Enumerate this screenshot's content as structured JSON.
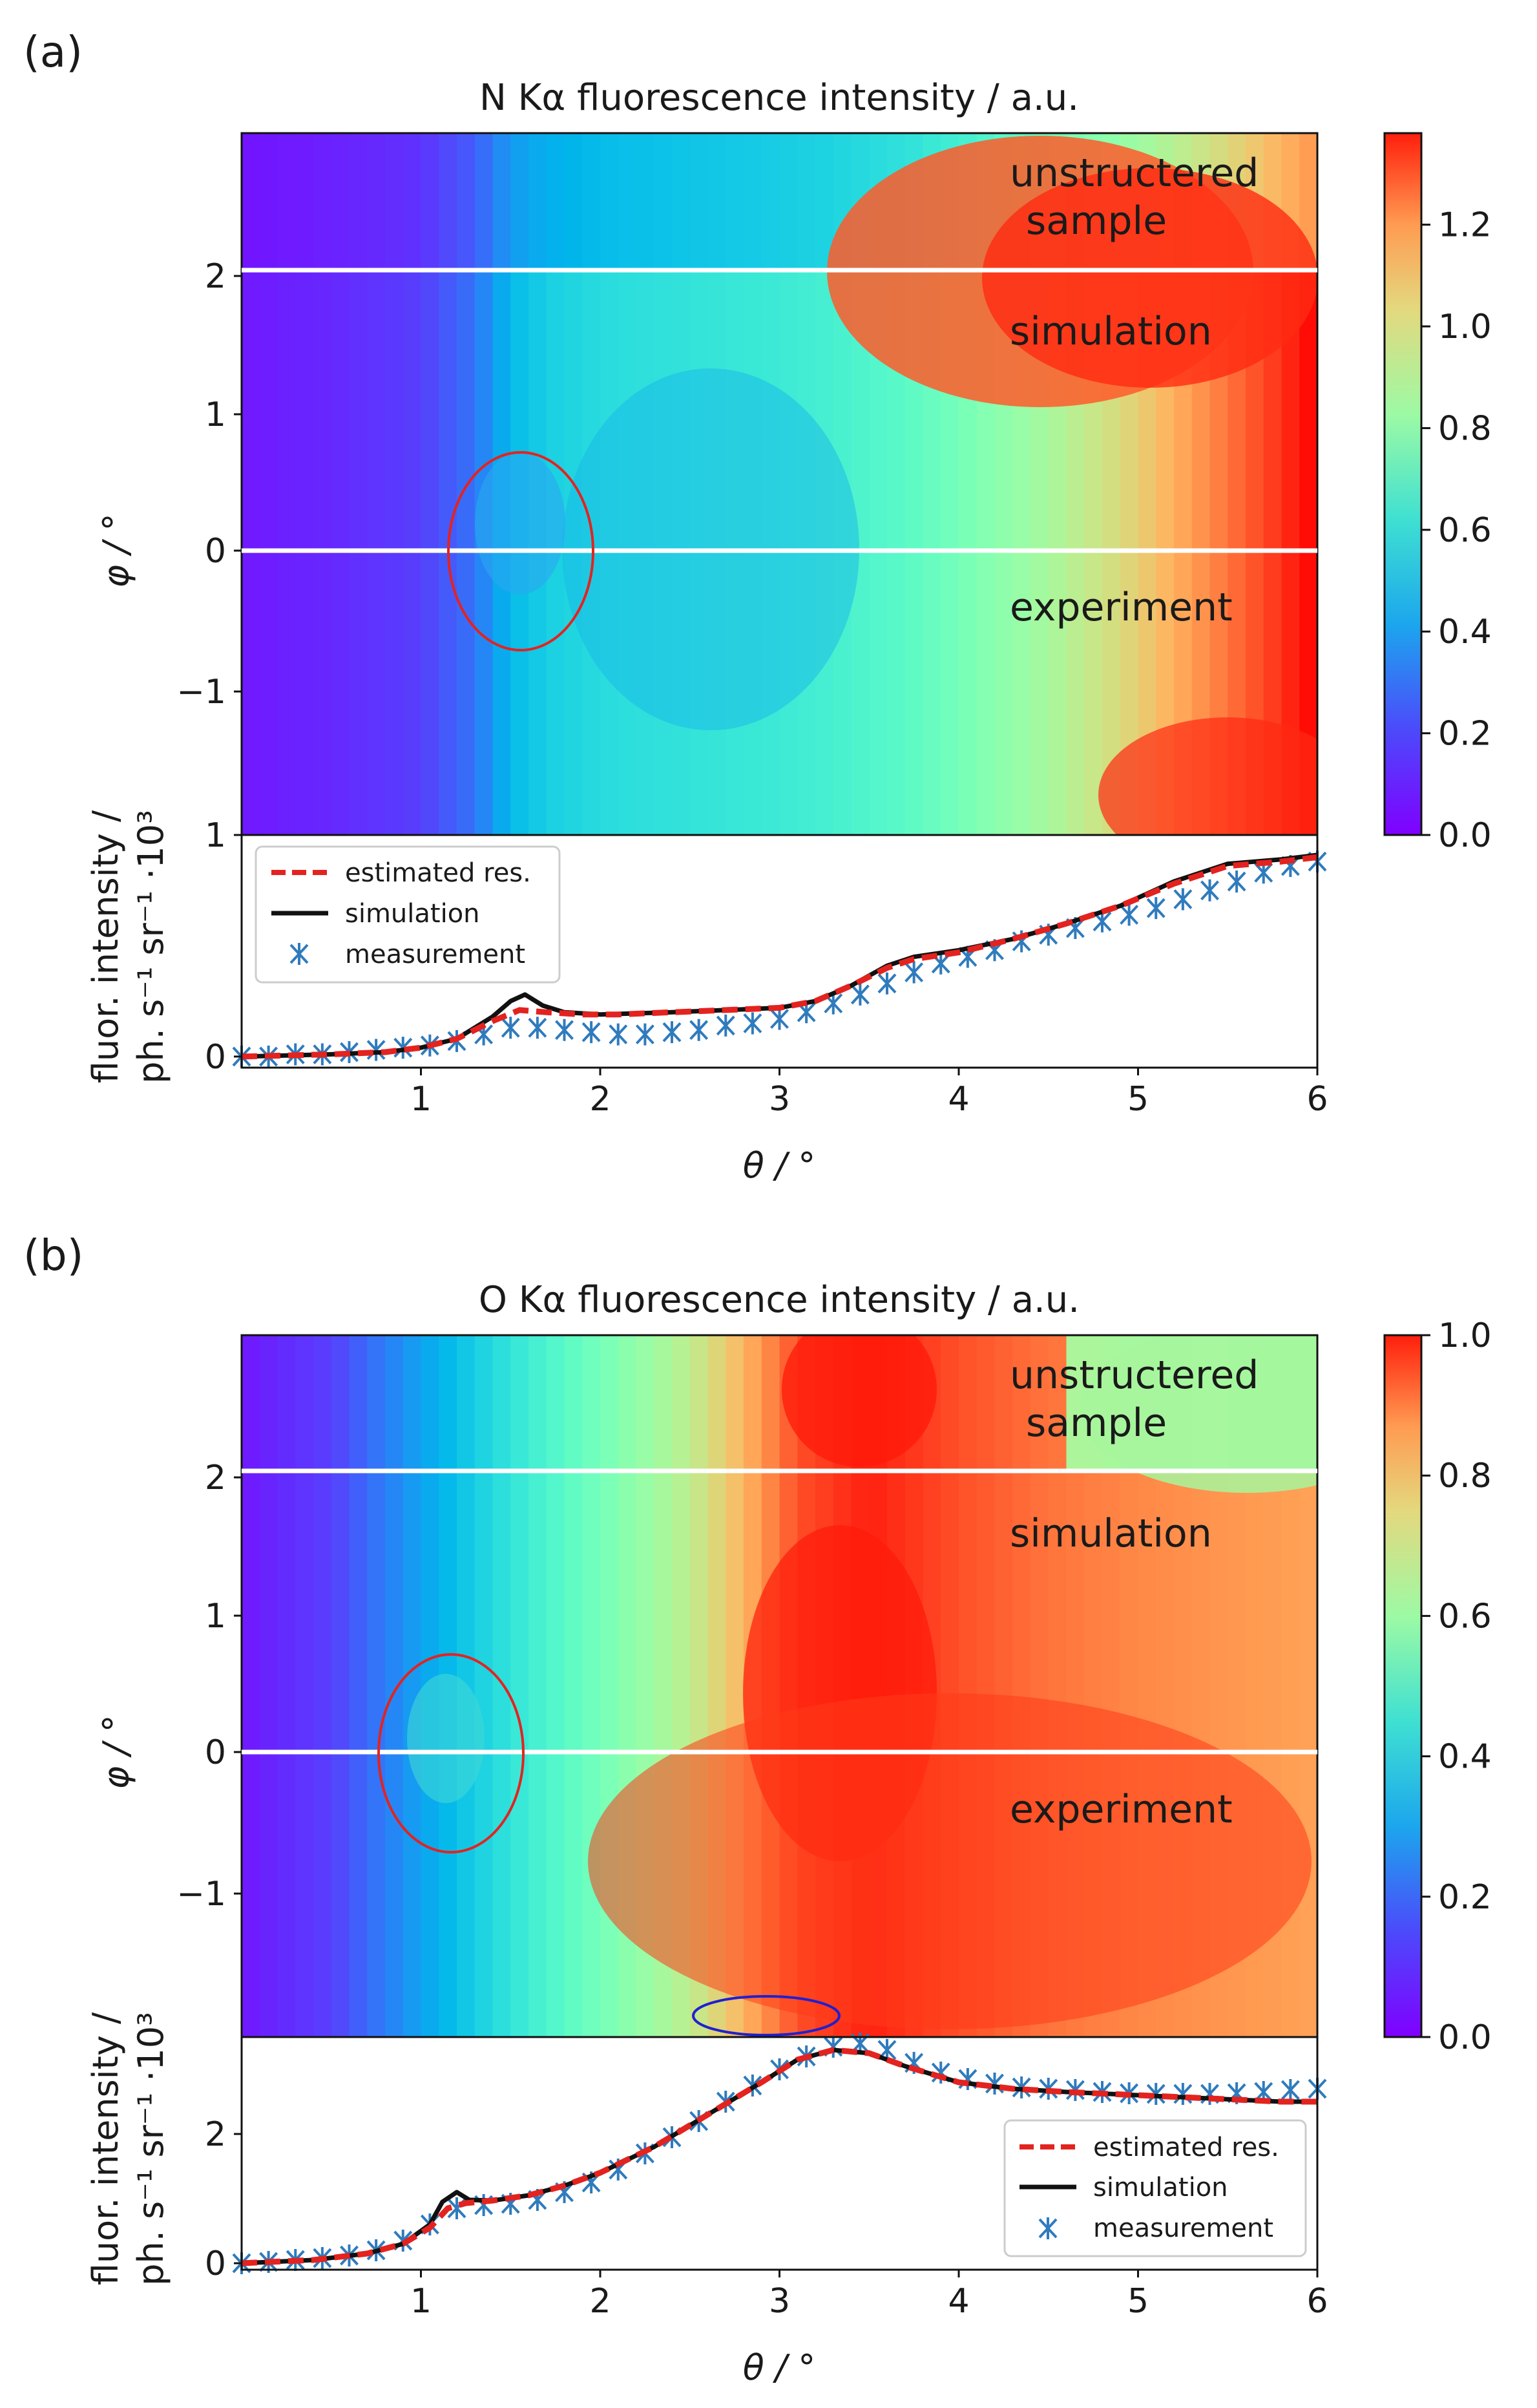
{
  "chart_data": [
    {
      "panel_label": "(a)",
      "type": "heatmap",
      "title": "N Kα fluorescence intensity / a.u.",
      "xlabel": "θ / °",
      "ylabel": "φ / °",
      "xlim": [
        0,
        6
      ],
      "ylim": [
        -2,
        3
      ],
      "y_ticks": [
        "−1",
        "0",
        "1",
        "2"
      ],
      "colorbar": {
        "min": 0,
        "max": 1.38,
        "ticks": [
          "0.0",
          "0.2",
          "0.4",
          "0.6",
          "0.8",
          "1.0",
          "1.2"
        ],
        "colormap": "rainbow"
      },
      "region_labels": [
        "unstructered",
        "sample",
        "simulation",
        "experiment"
      ],
      "divider_phi": [
        2.05,
        0
      ],
      "highlight_ellipse": {
        "theta": 1.55,
        "phi": 0,
        "dtheta": 0.4,
        "dphi": 0.7,
        "color": "#e3231f"
      },
      "intensity_profile": [
        [
          0,
          0.03
        ],
        [
          0.5,
          0.05
        ],
        [
          1,
          0.08
        ],
        [
          1.3,
          0.15
        ],
        [
          1.5,
          0.26
        ],
        [
          1.7,
          0.3
        ],
        [
          2,
          0.33
        ],
        [
          2.5,
          0.35
        ],
        [
          3,
          0.37
        ],
        [
          3.3,
          0.39
        ],
        [
          3.7,
          0.43
        ],
        [
          4,
          0.48
        ],
        [
          4.5,
          0.58
        ],
        [
          5,
          0.7
        ],
        [
          5.5,
          0.85
        ],
        [
          6,
          1.0
        ]
      ],
      "lineplot": {
        "xlabel": "θ / °",
        "ylabel_line1": "fluor. intensity /",
        "ylabel_line2": "ph. s⁻¹ sr⁻¹ ·10³",
        "xlim": [
          0,
          6
        ],
        "ylim": [
          -0.05,
          1.0
        ],
        "x_ticks": [
          "1",
          "2",
          "3",
          "4",
          "5",
          "6"
        ],
        "y_ticks": [
          "0",
          "1"
        ],
        "legend": {
          "position": "top-left",
          "entries": [
            "estimated res.",
            "simulation",
            "measurement"
          ]
        },
        "series": [
          {
            "name": "estimated res.",
            "style": "dashed",
            "color": "#e3231f",
            "x": [
              0,
              0.5,
              0.8,
              1,
              1.2,
              1.4,
              1.55,
              1.7,
              1.9,
              2.1,
              2.4,
              2.7,
              3,
              3.2,
              3.4,
              3.6,
              3.75,
              4,
              4.3,
              4.6,
              4.9,
              5.2,
              5.5,
              5.8,
              6
            ],
            "y": [
              0,
              0.01,
              0.02,
              0.04,
              0.08,
              0.16,
              0.21,
              0.2,
              0.19,
              0.19,
              0.2,
              0.21,
              0.22,
              0.25,
              0.32,
              0.4,
              0.44,
              0.47,
              0.53,
              0.6,
              0.68,
              0.78,
              0.86,
              0.88,
              0.9
            ]
          },
          {
            "name": "simulation",
            "style": "solid",
            "color": "#111111",
            "x": [
              0,
              0.5,
              0.8,
              1,
              1.2,
              1.4,
              1.5,
              1.58,
              1.68,
              1.8,
              2,
              2.4,
              2.7,
              3,
              3.2,
              3.4,
              3.6,
              3.75,
              4,
              4.3,
              4.6,
              4.9,
              5.2,
              5.5,
              5.8,
              6
            ],
            "y": [
              0,
              0.01,
              0.02,
              0.04,
              0.08,
              0.18,
              0.25,
              0.28,
              0.23,
              0.2,
              0.19,
              0.2,
              0.21,
              0.22,
              0.25,
              0.32,
              0.41,
              0.45,
              0.48,
              0.53,
              0.6,
              0.68,
              0.79,
              0.87,
              0.89,
              0.91
            ]
          },
          {
            "name": "measurement",
            "style": "markers",
            "color": "#2f7bbd",
            "x": [
              0,
              0.15,
              0.3,
              0.45,
              0.6,
              0.75,
              0.9,
              1.05,
              1.2,
              1.35,
              1.5,
              1.65,
              1.8,
              1.95,
              2.1,
              2.25,
              2.4,
              2.55,
              2.7,
              2.85,
              3,
              3.15,
              3.3,
              3.45,
              3.6,
              3.75,
              3.9,
              4.05,
              4.2,
              4.35,
              4.5,
              4.65,
              4.8,
              4.95,
              5.1,
              5.25,
              5.4,
              5.55,
              5.7,
              5.85,
              6
            ],
            "y": [
              0,
              0,
              0.01,
              0.01,
              0.02,
              0.03,
              0.04,
              0.05,
              0.07,
              0.1,
              0.13,
              0.13,
              0.12,
              0.11,
              0.1,
              0.1,
              0.11,
              0.12,
              0.14,
              0.15,
              0.17,
              0.2,
              0.24,
              0.28,
              0.33,
              0.38,
              0.42,
              0.45,
              0.48,
              0.52,
              0.55,
              0.58,
              0.61,
              0.64,
              0.67,
              0.71,
              0.75,
              0.79,
              0.83,
              0.86,
              0.88
            ]
          }
        ]
      }
    },
    {
      "panel_label": "(b)",
      "type": "heatmap",
      "title": "O Kα fluorescence intensity / a.u.",
      "xlabel": "θ / °",
      "ylabel": "φ / °",
      "xlim": [
        0,
        6
      ],
      "ylim": [
        -2,
        3
      ],
      "y_ticks": [
        "−1",
        "0",
        "1",
        "2"
      ],
      "colorbar": {
        "min": 0,
        "max": 1.0,
        "ticks": [
          "0.0",
          "0.2",
          "0.4",
          "0.6",
          "0.8",
          "1.0"
        ],
        "colormap": "rainbow"
      },
      "region_labels": [
        "unstructered",
        "sample",
        "simulation",
        "experiment"
      ],
      "divider_phi": [
        2.05,
        0
      ],
      "highlight_ellipse": {
        "theta": 1.15,
        "phi": 0,
        "dtheta": 0.4,
        "dphi": 0.7,
        "color": "#e3231f"
      },
      "highlight_ellipse_2": {
        "theta": 2.95,
        "phi": -1.85,
        "dtheta": 0.4,
        "dphi": 0.13,
        "color": "#2020d0"
      },
      "intensity_profile": [
        [
          0,
          0.03
        ],
        [
          0.5,
          0.08
        ],
        [
          1,
          0.22
        ],
        [
          1.5,
          0.35
        ],
        [
          2,
          0.48
        ],
        [
          2.5,
          0.62
        ],
        [
          2.8,
          0.75
        ],
        [
          3.1,
          0.9
        ],
        [
          3.5,
          0.96
        ],
        [
          4,
          0.9
        ],
        [
          4.5,
          0.85
        ],
        [
          5,
          0.82
        ],
        [
          5.5,
          0.8
        ],
        [
          6,
          0.78
        ]
      ],
      "lineplot": {
        "xlabel": "θ / °",
        "ylabel_line1": "fluor. intensity /",
        "ylabel_line2": "ph. s⁻¹ sr⁻¹ ·10³",
        "xlim": [
          0,
          6
        ],
        "ylim": [
          -0.1,
          3.5
        ],
        "x_ticks": [
          "1",
          "2",
          "3",
          "4",
          "5",
          "6"
        ],
        "y_ticks": [
          "0",
          "2"
        ],
        "legend": {
          "position": "bottom-right",
          "entries": [
            "estimated res.",
            "simulation",
            "measurement"
          ]
        },
        "series": [
          {
            "name": "estimated res.",
            "style": "dashed",
            "color": "#e3231f",
            "x": [
              0,
              0.4,
              0.7,
              0.9,
              1.05,
              1.15,
              1.25,
              1.4,
              1.6,
              1.8,
              2,
              2.3,
              2.6,
              2.9,
              3.1,
              3.3,
              3.5,
              3.7,
              4,
              4.3,
              4.6,
              5,
              5.4,
              5.8,
              6
            ],
            "y": [
              0,
              0.05,
              0.15,
              0.3,
              0.55,
              0.85,
              0.93,
              0.97,
              1.05,
              1.2,
              1.4,
              1.8,
              2.3,
              2.8,
              3.15,
              3.3,
              3.25,
              3.05,
              2.8,
              2.7,
              2.65,
              2.6,
              2.55,
              2.5,
              2.5
            ]
          },
          {
            "name": "simulation",
            "style": "solid",
            "color": "#111111",
            "x": [
              0,
              0.4,
              0.7,
              0.9,
              1.05,
              1.12,
              1.2,
              1.27,
              1.4,
              1.6,
              1.8,
              2,
              2.3,
              2.6,
              2.9,
              3.1,
              3.3,
              3.5,
              3.7,
              4,
              4.3,
              4.6,
              5,
              5.4,
              5.8,
              6
            ],
            "y": [
              0,
              0.05,
              0.15,
              0.3,
              0.6,
              0.95,
              1.1,
              0.98,
              0.97,
              1.05,
              1.2,
              1.4,
              1.8,
              2.3,
              2.8,
              3.15,
              3.3,
              3.25,
              3.05,
              2.8,
              2.7,
              2.65,
              2.6,
              2.55,
              2.5,
              2.5
            ]
          },
          {
            "name": "measurement",
            "style": "markers",
            "color": "#2f7bbd",
            "x": [
              0,
              0.15,
              0.3,
              0.45,
              0.6,
              0.75,
              0.9,
              1.05,
              1.2,
              1.35,
              1.5,
              1.65,
              1.8,
              1.95,
              2.1,
              2.25,
              2.4,
              2.55,
              2.7,
              2.85,
              3,
              3.15,
              3.3,
              3.45,
              3.6,
              3.75,
              3.9,
              4.05,
              4.2,
              4.35,
              4.5,
              4.65,
              4.8,
              4.95,
              5.1,
              5.25,
              5.4,
              5.55,
              5.7,
              5.85,
              6
            ],
            "y": [
              0,
              0.02,
              0.05,
              0.08,
              0.12,
              0.2,
              0.35,
              0.6,
              0.85,
              0.9,
              0.92,
              0.98,
              1.1,
              1.25,
              1.45,
              1.7,
              1.95,
              2.2,
              2.5,
              2.75,
              3,
              3.2,
              3.35,
              3.4,
              3.3,
              3.1,
              2.95,
              2.85,
              2.78,
              2.72,
              2.7,
              2.68,
              2.65,
              2.63,
              2.62,
              2.62,
              2.62,
              2.63,
              2.65,
              2.68,
              2.7
            ]
          }
        ]
      }
    }
  ]
}
